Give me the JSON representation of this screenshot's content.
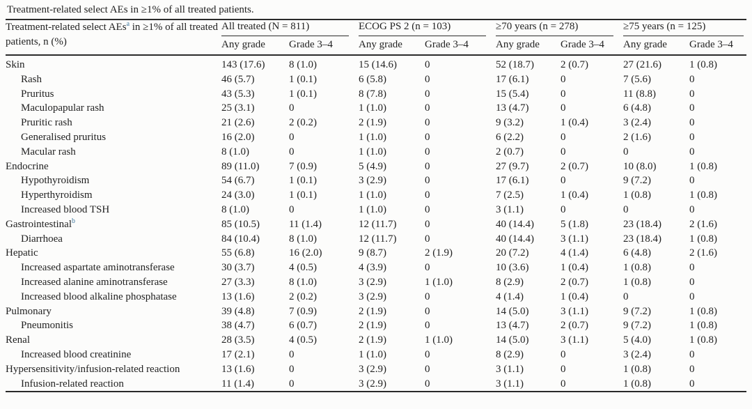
{
  "caption": "Treatment-related select AEs in ≥1% of all treated patients.",
  "colors": {
    "text": "#222222",
    "rule": "#2a2a2a",
    "footnote_marker": "#4179a0",
    "background": "#fcfcfb"
  },
  "table": {
    "stub_header": {
      "before": "Treatment-related select AEs",
      "sup": "a",
      "after": " in ≥1% of all treated patients, n (%)"
    },
    "groups": [
      {
        "label": "All treated (N = 811)"
      },
      {
        "label": "ECOG PS 2 (n = 103)"
      },
      {
        "label": "≥70 years (n = 278)"
      },
      {
        "label": "≥75 years (n = 125)"
      }
    ],
    "subheaders": {
      "any_grade": "Any grade",
      "grade_3_4": "Grade 3–4"
    },
    "rows": [
      {
        "label": "Skin",
        "indent": false,
        "sup": "",
        "values": [
          "143 (17.6)",
          "8 (1.0)",
          "15 (14.6)",
          "0",
          "52 (18.7)",
          "2 (0.7)",
          "27 (21.6)",
          "1 (0.8)"
        ]
      },
      {
        "label": "Rash",
        "indent": true,
        "sup": "",
        "values": [
          "46 (5.7)",
          "1 (0.1)",
          "6 (5.8)",
          "0",
          "17 (6.1)",
          "0",
          "7 (5.6)",
          "0"
        ]
      },
      {
        "label": "Pruritus",
        "indent": true,
        "sup": "",
        "values": [
          "43 (5.3)",
          "1 (0.1)",
          "8 (7.8)",
          "0",
          "15 (5.4)",
          "0",
          "11 (8.8)",
          "0"
        ]
      },
      {
        "label": "Maculopapular rash",
        "indent": true,
        "sup": "",
        "values": [
          "25 (3.1)",
          "0",
          "1 (1.0)",
          "0",
          "13 (4.7)",
          "0",
          "6 (4.8)",
          "0"
        ]
      },
      {
        "label": "Pruritic rash",
        "indent": true,
        "sup": "",
        "values": [
          "21 (2.6)",
          "2 (0.2)",
          "2 (1.9)",
          "0",
          "9 (3.2)",
          "1 (0.4)",
          "3 (2.4)",
          "0"
        ]
      },
      {
        "label": "Generalised pruritus",
        "indent": true,
        "sup": "",
        "values": [
          "16 (2.0)",
          "0",
          "1 (1.0)",
          "0",
          "6 (2.2)",
          "0",
          "2 (1.6)",
          "0"
        ]
      },
      {
        "label": "Macular rash",
        "indent": true,
        "sup": "",
        "values": [
          "8 (1.0)",
          "0",
          "1 (1.0)",
          "0",
          "2 (0.7)",
          "0",
          "0",
          "0"
        ]
      },
      {
        "label": "Endocrine",
        "indent": false,
        "sup": "",
        "values": [
          "89 (11.0)",
          "7 (0.9)",
          "5 (4.9)",
          "0",
          "27 (9.7)",
          "2 (0.7)",
          "10 (8.0)",
          "1 (0.8)"
        ]
      },
      {
        "label": "Hypothyroidism",
        "indent": true,
        "sup": "",
        "values": [
          "54 (6.7)",
          "1 (0.1)",
          "3 (2.9)",
          "0",
          "17 (6.1)",
          "0",
          "9 (7.2)",
          "0"
        ]
      },
      {
        "label": "Hyperthyroidism",
        "indent": true,
        "sup": "",
        "values": [
          "24 (3.0)",
          "1 (0.1)",
          "1 (1.0)",
          "0",
          "7 (2.5)",
          "1 (0.4)",
          "1 (0.8)",
          "1 (0.8)"
        ]
      },
      {
        "label": "Increased blood TSH",
        "indent": true,
        "sup": "",
        "values": [
          "8 (1.0)",
          "0",
          "1 (1.0)",
          "0",
          "3 (1.1)",
          "0",
          "0",
          "0"
        ]
      },
      {
        "label": "Gastrointestinal",
        "indent": false,
        "sup": "b",
        "values": [
          "85 (10.5)",
          "11 (1.4)",
          "12 (11.7)",
          "0",
          "40 (14.4)",
          "5 (1.8)",
          "23 (18.4)",
          "2 (1.6)"
        ]
      },
      {
        "label": "Diarrhoea",
        "indent": true,
        "sup": "",
        "values": [
          "84 (10.4)",
          "8 (1.0)",
          "12 (11.7)",
          "0",
          "40 (14.4)",
          "3 (1.1)",
          "23 (18.4)",
          "1 (0.8)"
        ]
      },
      {
        "label": "Hepatic",
        "indent": false,
        "sup": "",
        "values": [
          "55 (6.8)",
          "16 (2.0)",
          "9 (8.7)",
          "2 (1.9)",
          "20 (7.2)",
          "4 (1.4)",
          "6 (4.8)",
          "2 (1.6)"
        ]
      },
      {
        "label": "Increased aspartate aminotransferase",
        "indent": true,
        "sup": "",
        "values": [
          "30 (3.7)",
          "4 (0.5)",
          "4 (3.9)",
          "0",
          "10 (3.6)",
          "1 (0.4)",
          "1 (0.8)",
          "0"
        ]
      },
      {
        "label": "Increased alanine aminotransferase",
        "indent": true,
        "sup": "",
        "values": [
          "27 (3.3)",
          "8 (1.0)",
          "3 (2.9)",
          "1 (1.0)",
          "8 (2.9)",
          "2 (0.7)",
          "1 (0.8)",
          "0"
        ]
      },
      {
        "label": "Increased blood alkaline phosphatase",
        "indent": true,
        "sup": "",
        "values": [
          "13 (1.6)",
          "2 (0.2)",
          "3 (2.9)",
          "0",
          "4 (1.4)",
          "1 (0.4)",
          "0",
          "0"
        ]
      },
      {
        "label": "Pulmonary",
        "indent": false,
        "sup": "",
        "values": [
          "39 (4.8)",
          "7 (0.9)",
          "2 (1.9)",
          "0",
          "14 (5.0)",
          "3 (1.1)",
          "9 (7.2)",
          "1 (0.8)"
        ]
      },
      {
        "label": "Pneumonitis",
        "indent": true,
        "sup": "",
        "values": [
          "38 (4.7)",
          "6 (0.7)",
          "2 (1.9)",
          "0",
          "13 (4.7)",
          "2 (0.7)",
          "9 (7.2)",
          "1 (0.8)"
        ]
      },
      {
        "label": "Renal",
        "indent": false,
        "sup": "",
        "values": [
          "28 (3.5)",
          "4 (0.5)",
          "2 (1.9)",
          "1 (1.0)",
          "14 (5.0)",
          "3 (1.1)",
          "5 (4.0)",
          "1 (0.8)"
        ]
      },
      {
        "label": "Increased blood creatinine",
        "indent": true,
        "sup": "",
        "values": [
          "17 (2.1)",
          "0",
          "1 (1.0)",
          "0",
          "8 (2.9)",
          "0",
          "3 (2.4)",
          "0"
        ]
      },
      {
        "label": "Hypersensitivity/infusion-related reaction",
        "indent": false,
        "sup": "",
        "values": [
          "13 (1.6)",
          "0",
          "3 (2.9)",
          "0",
          "3 (1.1)",
          "0",
          "1 (0.8)",
          "0"
        ]
      },
      {
        "label": "Infusion-related reaction",
        "indent": true,
        "sup": "",
        "values": [
          "11 (1.4)",
          "0",
          "3 (2.9)",
          "0",
          "3 (1.1)",
          "0",
          "1 (0.8)",
          "0"
        ]
      }
    ]
  }
}
